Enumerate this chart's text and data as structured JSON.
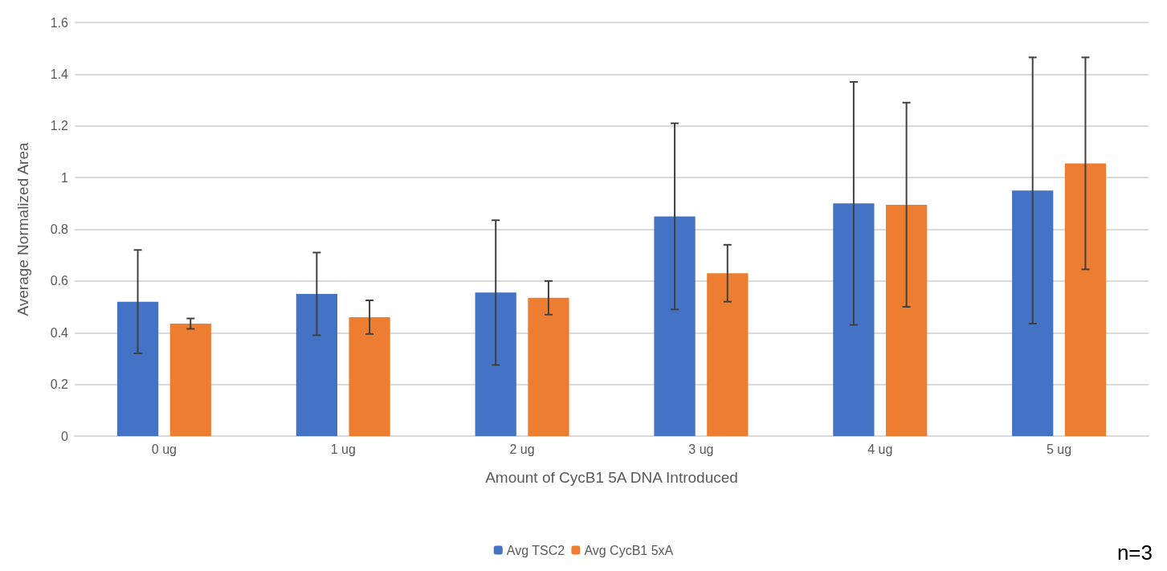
{
  "chart_data": {
    "type": "bar",
    "xlabel": "Amount of CycB1 5A DNA Introduced",
    "ylabel": "Average Normalized Area",
    "categories": [
      "0 ug",
      "1 ug",
      "2 ug",
      "3 ug",
      "4 ug",
      "5 ug"
    ],
    "series": [
      {
        "name": "Avg TSC2",
        "color": "#4472c4",
        "values": [
          0.52,
          0.55,
          0.555,
          0.85,
          0.9,
          0.95
        ],
        "errors": [
          0.2,
          0.16,
          0.28,
          0.36,
          0.47,
          0.515
        ]
      },
      {
        "name": "Avg CycB1 5xA",
        "color": "#ed7d31",
        "values": [
          0.435,
          0.46,
          0.535,
          0.63,
          0.895,
          1.055
        ],
        "errors": [
          0.02,
          0.065,
          0.065,
          0.11,
          0.395,
          0.41
        ]
      }
    ],
    "ylim": [
      0,
      1.6
    ],
    "yticks": [
      0,
      0.2,
      0.4,
      0.6,
      0.8,
      1,
      1.2,
      1.4,
      1.6
    ],
    "grid": "y",
    "legend": "bottom",
    "annotations": [
      "n=3"
    ]
  }
}
